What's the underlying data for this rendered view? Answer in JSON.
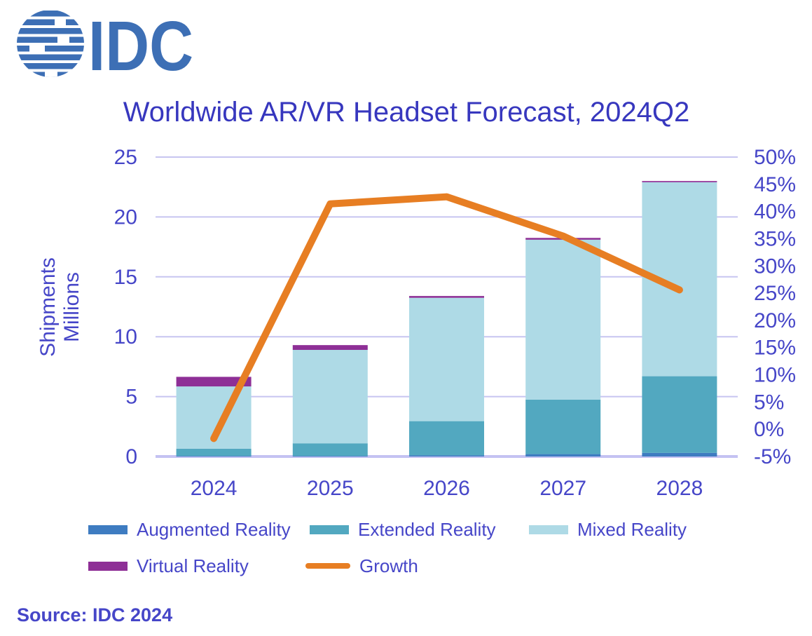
{
  "logo": {
    "text": "IDC",
    "color": "#3D6FB5"
  },
  "title": {
    "text": "Worldwide AR/VR Headset Forecast, 2024Q2",
    "color": "#3737BE"
  },
  "source": {
    "text": "Source: IDC 2024"
  },
  "colors": {
    "text": "#4646C8",
    "gridline": "#C7C5F0",
    "axis_line": "#C4C2F2",
    "background": "#FFFFFF"
  },
  "chart_data": {
    "type": "bar",
    "subtype": "stacked-bars-with-line",
    "title": "Worldwide AR/VR Headset Forecast, 2024Q2",
    "categories": [
      "2024",
      "2025",
      "2026",
      "2027",
      "2028"
    ],
    "series": [
      {
        "name": "Augmented Reality",
        "type": "bar",
        "color": "#3E7CC1",
        "values": [
          0.05,
          0.05,
          0.1,
          0.2,
          0.3
        ]
      },
      {
        "name": "Extended Reality",
        "type": "bar",
        "color": "#52A8C0",
        "values": [
          0.6,
          1.05,
          2.85,
          4.55,
          6.4
        ]
      },
      {
        "name": "Mixed Reality",
        "type": "bar",
        "color": "#AEDAE6",
        "values": [
          5.2,
          7.8,
          10.3,
          13.35,
          16.2
        ]
      },
      {
        "name": "Virtual Reality",
        "type": "bar",
        "color": "#8E2F96",
        "values": [
          0.8,
          0.4,
          0.15,
          0.15,
          0.1
        ]
      },
      {
        "name": "Growth",
        "type": "line",
        "axis": "right",
        "color": "#E77E23",
        "values": [
          -1.7,
          41.4,
          42.7,
          35.5,
          25.6
        ],
        "unit": "%"
      }
    ],
    "left_axis": {
      "label_lines": [
        "Shipments",
        "Millions"
      ],
      "ticks": [
        0,
        5,
        10,
        15,
        20,
        25
      ],
      "range": [
        0,
        25
      ]
    },
    "right_axis": {
      "ticks": [
        -5,
        0,
        5,
        10,
        15,
        20,
        25,
        30,
        35,
        40,
        45,
        50
      ],
      "range": [
        -5,
        50
      ],
      "format": "percent"
    },
    "grid": true,
    "legend_position": "bottom",
    "stack_order_bottom_to_top": [
      "Augmented Reality",
      "Extended Reality",
      "Mixed Reality",
      "Virtual Reality"
    ]
  }
}
